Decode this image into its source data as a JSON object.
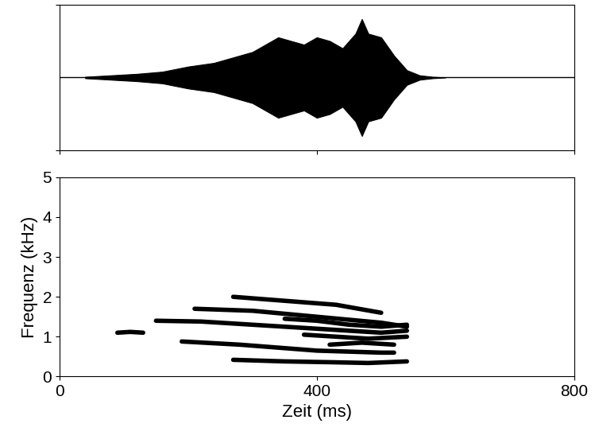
{
  "chart_data": [
    {
      "type": "area",
      "color": "#000000",
      "tick_labels": false,
      "x": [
        40,
        80,
        120,
        160,
        200,
        240,
        280,
        300,
        320,
        340,
        360,
        380,
        400,
        420,
        440,
        460,
        470,
        480,
        500,
        520,
        540,
        560,
        580,
        600
      ],
      "values": [
        0.01,
        0.03,
        0.05,
        0.08,
        0.15,
        0.2,
        0.3,
        0.35,
        0.45,
        0.55,
        0.5,
        0.45,
        0.55,
        0.5,
        0.4,
        0.6,
        0.8,
        0.6,
        0.55,
        0.3,
        0.1,
        0.03,
        0.01,
        0.0
      ],
      "xlim": [
        0,
        800
      ],
      "xticks": [
        0,
        400,
        800
      ],
      "ylim": [
        -1,
        1
      ],
      "yticks": [
        -1,
        1
      ]
    },
    {
      "type": "line",
      "color": "#000000",
      "xlabel": "Zeit (ms)",
      "ylabel": "Frequenz (kHz)",
      "xlim": [
        0,
        800
      ],
      "xticks": [
        0,
        400,
        800
      ],
      "ylim": [
        0,
        5
      ],
      "yticks": [
        0,
        1,
        2,
        3,
        4,
        5
      ],
      "series": [
        {
          "x": [
            90,
            110,
            130
          ],
          "values": [
            1.1,
            1.12,
            1.1
          ]
        },
        {
          "x": [
            270,
            350,
            420,
            480,
            540
          ],
          "values": [
            0.42,
            0.38,
            0.36,
            0.34,
            0.38
          ]
        },
        {
          "x": [
            190,
            280,
            400,
            500,
            520
          ],
          "values": [
            0.88,
            0.8,
            0.65,
            0.6,
            0.6
          ]
        },
        {
          "x": [
            150,
            220,
            300,
            400,
            500,
            540
          ],
          "values": [
            1.4,
            1.38,
            1.3,
            1.2,
            1.1,
            1.15
          ]
        },
        {
          "x": [
            210,
            300,
            400,
            500,
            540
          ],
          "values": [
            1.7,
            1.65,
            1.5,
            1.35,
            1.25
          ]
        },
        {
          "x": [
            270,
            350,
            430,
            500
          ],
          "values": [
            2.0,
            1.9,
            1.8,
            1.6
          ]
        },
        {
          "x": [
            350,
            400,
            450,
            500,
            540
          ],
          "values": [
            1.45,
            1.4,
            1.3,
            1.25,
            1.3
          ]
        },
        {
          "x": [
            380,
            430,
            480,
            540
          ],
          "values": [
            1.05,
            1.0,
            0.95,
            1.0
          ]
        },
        {
          "x": [
            420,
            470,
            520
          ],
          "values": [
            0.8,
            0.85,
            0.8
          ]
        }
      ]
    }
  ]
}
